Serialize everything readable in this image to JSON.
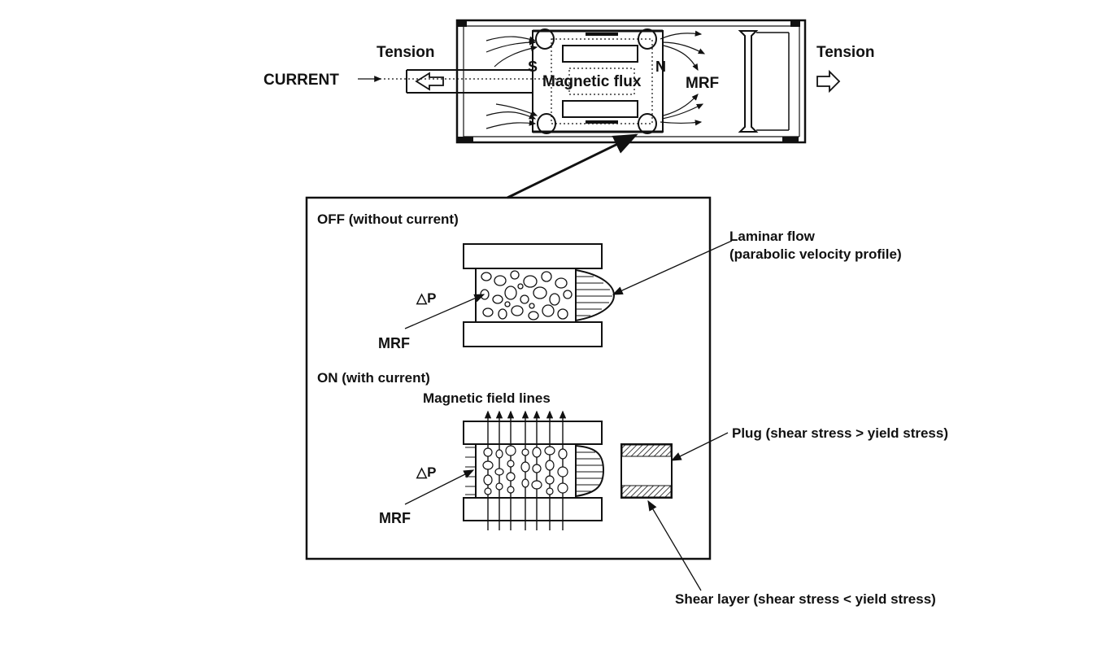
{
  "top_diagram": {
    "tension_left": "Tension",
    "tension_right": "Tension",
    "current": "CURRENT",
    "pole_s": "S",
    "pole_n": "N",
    "magnetic_flux": "Magnetic flux",
    "mrf": "MRF"
  },
  "detail": {
    "off_title": "OFF (without current)",
    "on_title": "ON (with current)",
    "delta_p_off": "△P",
    "delta_p_on": "△P",
    "mrf_off": "MRF",
    "mrf_on": "MRF",
    "field_lines": "Magnetic field lines"
  },
  "callouts": {
    "laminar_line1": "Laminar flow",
    "laminar_line2": "(parabolic velocity profile)",
    "plug": "Plug (shear stress > yield stress)",
    "shear_layer": "Shear layer (shear stress < yield stress)"
  },
  "colors": {
    "ink": "#111111",
    "background": "#ffffff"
  }
}
